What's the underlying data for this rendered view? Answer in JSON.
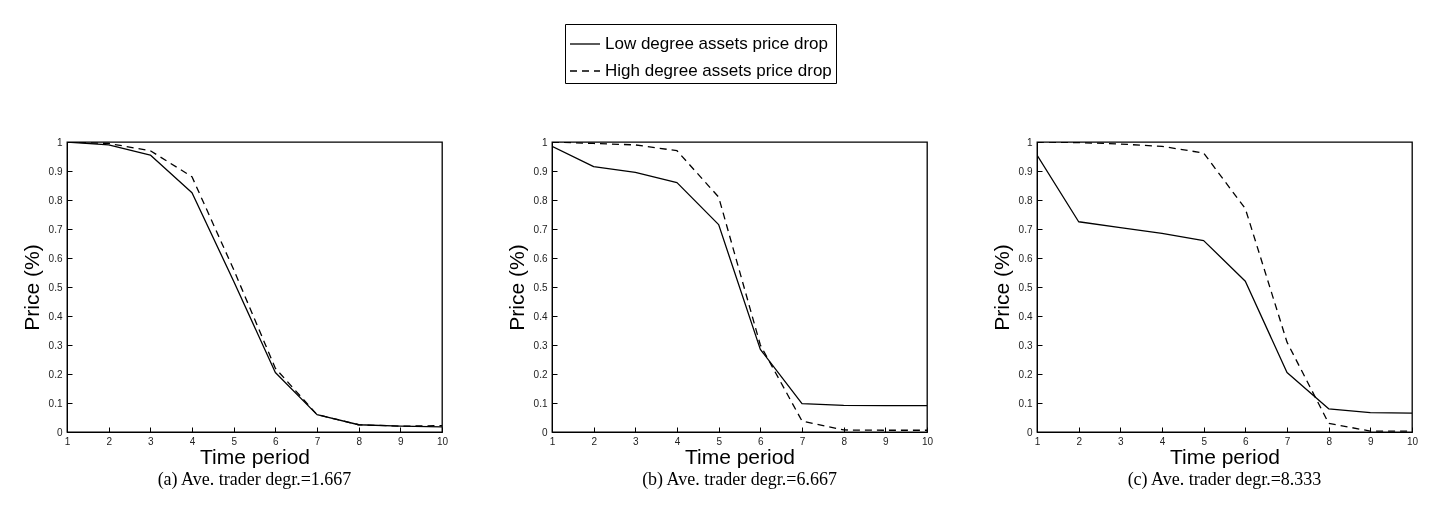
{
  "chart_data": [
    {
      "type": "line",
      "title": "(a) Ave. trader degr.=1.667",
      "xlabel": "Time period",
      "ylabel": "Price (%)",
      "legend": "top",
      "grid": false,
      "x": [
        1,
        2,
        3,
        4,
        5,
        6,
        7,
        8,
        9,
        10
      ],
      "xlim": [
        1,
        10
      ],
      "xticks": [
        1,
        2,
        3,
        4,
        5,
        6,
        7,
        8,
        9,
        10
      ],
      "ylim": [
        0,
        1
      ],
      "yticks": [
        0,
        0.1,
        0.2,
        0.3,
        0.4,
        0.5,
        0.6,
        0.7,
        0.8,
        0.9,
        1
      ],
      "series": [
        {
          "name": "Low degree assets price drop",
          "color": "#000000",
          "line_style": "solid",
          "values": [
            1.0,
            0.99,
            0.955,
            0.825,
            0.52,
            0.205,
            0.06,
            0.025,
            0.02,
            0.018
          ]
        },
        {
          "name": "High degree assets price drop",
          "color": "#000000",
          "line_style": "dashed",
          "values": [
            1.0,
            0.995,
            0.97,
            0.88,
            0.56,
            0.22,
            0.06,
            0.025,
            0.02,
            0.022
          ]
        }
      ]
    },
    {
      "type": "line",
      "title": "(b) Ave. trader degr.=6.667",
      "xlabel": "Time period",
      "ylabel": "Price (%)",
      "grid": false,
      "x": [
        1,
        2,
        3,
        4,
        5,
        6,
        7,
        8,
        9,
        10
      ],
      "xlim": [
        1,
        10
      ],
      "xticks": [
        1,
        2,
        3,
        4,
        5,
        6,
        7,
        8,
        9,
        10
      ],
      "ylim": [
        0,
        1
      ],
      "yticks": [
        0,
        0.1,
        0.2,
        0.3,
        0.4,
        0.5,
        0.6,
        0.7,
        0.8,
        0.9,
        1
      ],
      "series": [
        {
          "color": "#000000",
          "line_style": "solid",
          "values": [
            0.985,
            0.915,
            0.895,
            0.86,
            0.715,
            0.285,
            0.098,
            0.092,
            0.091,
            0.091
          ]
        },
        {
          "color": "#000000",
          "line_style": "dashed",
          "values": [
            1.0,
            0.995,
            0.99,
            0.97,
            0.81,
            0.3,
            0.038,
            0.007,
            0.006,
            0.006
          ]
        }
      ]
    },
    {
      "type": "line",
      "title": "(c) Ave. trader degr.=8.333",
      "xlabel": "Time period",
      "ylabel": "Price (%)",
      "grid": false,
      "x": [
        1,
        2,
        3,
        4,
        5,
        6,
        7,
        8,
        9,
        10
      ],
      "xlim": [
        1,
        10
      ],
      "xticks": [
        1,
        2,
        3,
        4,
        5,
        6,
        7,
        8,
        9,
        10
      ],
      "ylim": [
        0,
        1
      ],
      "yticks": [
        0,
        0.1,
        0.2,
        0.3,
        0.4,
        0.5,
        0.6,
        0.7,
        0.8,
        0.9,
        1
      ],
      "series": [
        {
          "color": "#000000",
          "line_style": "solid",
          "values": [
            0.955,
            0.725,
            0.705,
            0.685,
            0.66,
            0.52,
            0.205,
            0.08,
            0.067,
            0.065
          ]
        },
        {
          "color": "#000000",
          "line_style": "dashed",
          "values": [
            1.0,
            0.998,
            0.993,
            0.985,
            0.962,
            0.77,
            0.31,
            0.03,
            0.003,
            0.003
          ]
        }
      ]
    }
  ]
}
